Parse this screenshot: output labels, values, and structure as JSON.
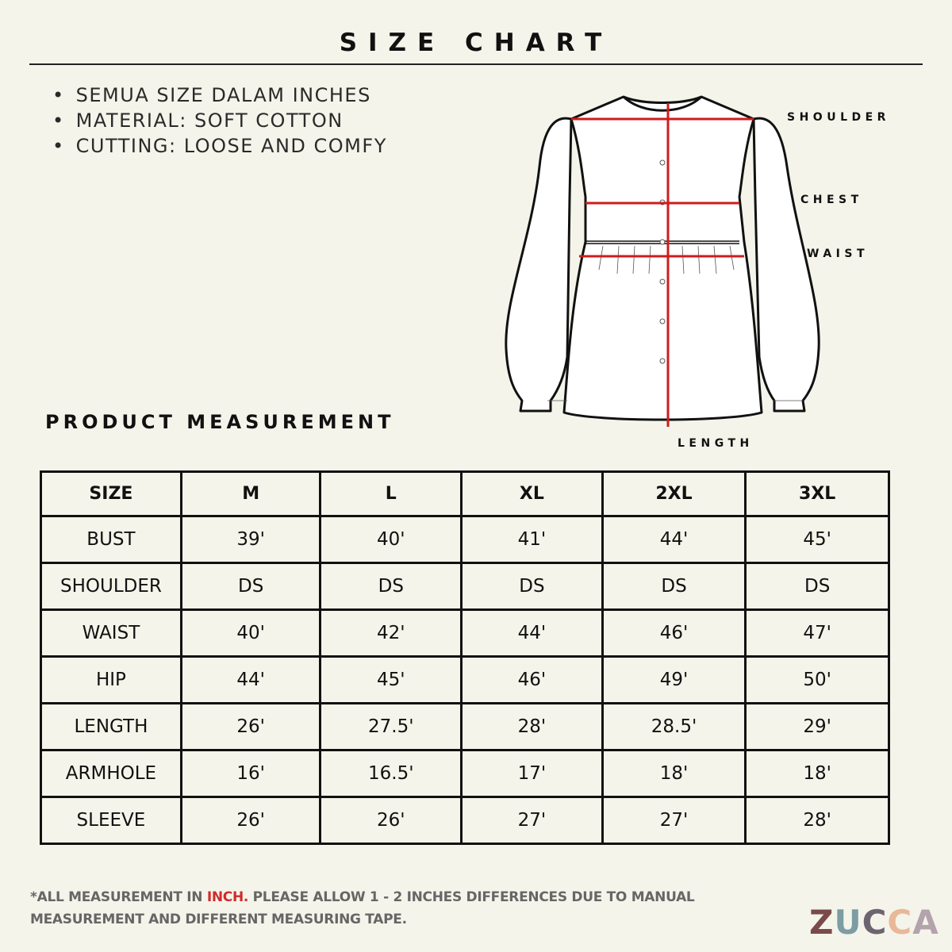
{
  "title": "SIZE CHART",
  "notes": [
    "SEMUA SIZE DALAM INCHES",
    "MATERIAL: SOFT COTTON",
    "CUTTING: LOOSE AND COMFY"
  ],
  "diagram_labels": {
    "shoulder": "SHOULDER",
    "chest": "CHEST",
    "waist": "WAIST",
    "length": "LENGTH"
  },
  "section_title": "PRODUCT MEASUREMENT",
  "table": {
    "headers": [
      "SIZE",
      "M",
      "L",
      "XL",
      "2XL",
      "3XL"
    ],
    "rows": [
      [
        "BUST",
        "39'",
        "40'",
        "41'",
        "44'",
        "45'"
      ],
      [
        "SHOULDER",
        "DS",
        "DS",
        "DS",
        "DS",
        "DS"
      ],
      [
        "WAIST",
        "40'",
        "42'",
        "44'",
        "46'",
        "47'"
      ],
      [
        "HIP",
        "44'",
        "45'",
        "46'",
        "49'",
        "50'"
      ],
      [
        "LENGTH",
        "26'",
        "27.5'",
        "28'",
        "28.5'",
        "29'"
      ],
      [
        "ARMHOLE",
        "16'",
        "16.5'",
        "17'",
        "18'",
        "18'"
      ],
      [
        "SLEEVE",
        "26'",
        "26'",
        "27'",
        "27'",
        "28'"
      ]
    ]
  },
  "footnote": {
    "before": "*ALL MEASUREMENT IN ",
    "highlight": "INCH.",
    "after": " PLEASE ALLOW 1 - 2 INCHES DIFFERENCES DUE TO MANUAL",
    "line2": "MEASUREMENT AND DIFFERENT MEASURING TAPE."
  },
  "logo": {
    "letters": [
      "Z",
      "U",
      "C",
      "C",
      "A"
    ],
    "colors": [
      "#7a4a4a",
      "#7d9ca3",
      "#6e6470",
      "#e8b898",
      "#b3a3ad"
    ]
  },
  "colors": {
    "background": "#f5f4ea",
    "measure_line": "#d01c1c",
    "highlight": "#d02b2b"
  }
}
